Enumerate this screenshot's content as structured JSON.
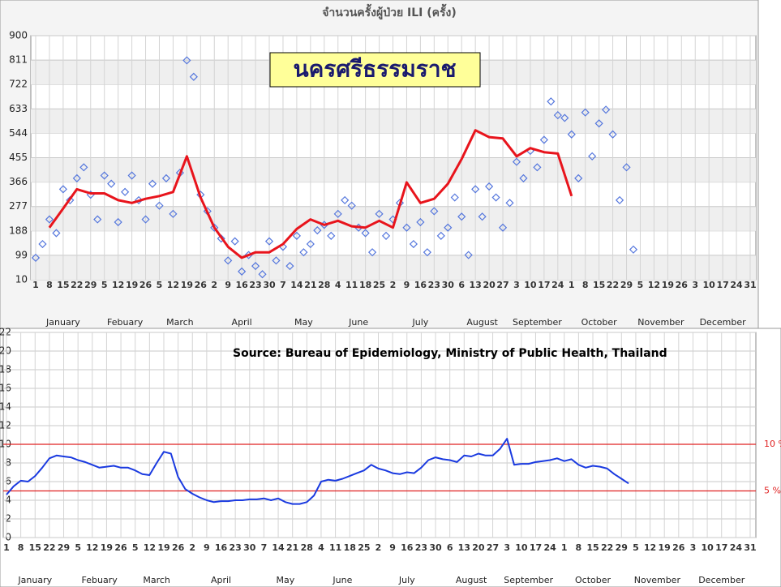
{
  "chart_data": [
    {
      "type": "line",
      "title": "จำนวนครั้งผู้ป่วย ILI (ครั้ง)",
      "annotation": "นครศรีธรรมราช",
      "months": [
        {
          "name": "January",
          "days": [
            1,
            8,
            15,
            22,
            29
          ]
        },
        {
          "name": "Febuary",
          "days": [
            5,
            12,
            19,
            26
          ]
        },
        {
          "name": "March",
          "days": [
            5,
            12,
            19,
            26
          ]
        },
        {
          "name": "April",
          "days": [
            2,
            9,
            16,
            23,
            30
          ]
        },
        {
          "name": "May",
          "days": [
            7,
            14,
            21,
            28
          ]
        },
        {
          "name": "June",
          "days": [
            4,
            11,
            18,
            25
          ]
        },
        {
          "name": "July",
          "days": [
            2,
            9,
            16,
            23,
            30
          ]
        },
        {
          "name": "August",
          "days": [
            6,
            13,
            20,
            27
          ]
        },
        {
          "name": "September",
          "days": [
            3,
            10,
            17,
            24
          ]
        },
        {
          "name": "October",
          "days": [
            1,
            8,
            15,
            22,
            29
          ]
        },
        {
          "name": "November",
          "days": [
            5,
            12,
            19,
            26
          ]
        },
        {
          "name": "December",
          "days": [
            3,
            10,
            17,
            24,
            31
          ]
        }
      ],
      "ylim": [
        10,
        900
      ],
      "yticks": [
        10,
        99,
        188,
        277,
        366,
        455,
        544,
        633,
        722,
        811,
        900
      ],
      "grid": true,
      "series": [
        {
          "type": "scatter",
          "color": "#5577dd",
          "values": [
            90,
            140,
            230,
            180,
            340,
            300,
            380,
            420,
            320,
            230,
            390,
            360,
            220,
            330,
            390,
            300,
            230,
            360,
            280,
            380,
            250,
            400,
            810,
            750,
            320,
            260,
            200,
            160,
            80,
            150,
            40,
            100,
            60,
            30,
            150,
            80,
            130,
            60,
            170,
            110,
            140,
            190,
            210,
            170,
            250,
            300,
            280,
            200,
            180,
            110,
            250,
            170,
            230,
            290,
            200,
            140,
            220,
            110,
            260,
            170,
            200,
            310,
            240,
            100,
            340,
            240,
            350,
            310,
            200,
            290,
            440,
            380,
            480,
            420,
            520,
            660,
            610,
            600,
            540,
            380,
            620,
            460,
            580,
            630,
            540,
            300,
            420,
            120
          ]
        },
        {
          "type": "line",
          "color": "#e8141c",
          "values": [
            null,
            200,
            270,
            340,
            325,
            325,
            300,
            290,
            305,
            315,
            330,
            460,
            310,
            200,
            130,
            90,
            110,
            110,
            140,
            195,
            230,
            210,
            225,
            205,
            200,
            225,
            200,
            365,
            290,
            305,
            360,
            450,
            555,
            530,
            525,
            460,
            490,
            475,
            470,
            315,
            null,
            null,
            null,
            null,
            null,
            null,
            null,
            null,
            null,
            null,
            null,
            null,
            null
          ]
        }
      ]
    },
    {
      "type": "line",
      "source": "Source: Bureau of Epidemiology, Ministry of Public Health, Thailand",
      "months": [
        {
          "name": "January",
          "days": [
            1,
            8,
            15,
            22,
            29
          ]
        },
        {
          "name": "Febuary",
          "days": [
            5,
            12,
            19,
            26
          ]
        },
        {
          "name": "March",
          "days": [
            5,
            12,
            19,
            26
          ]
        },
        {
          "name": "April",
          "days": [
            2,
            9,
            16,
            23,
            30
          ]
        },
        {
          "name": "May",
          "days": [
            7,
            14,
            21,
            28
          ]
        },
        {
          "name": "June",
          "days": [
            4,
            11,
            18,
            25
          ]
        },
        {
          "name": "July",
          "days": [
            2,
            9,
            16,
            23,
            30
          ]
        },
        {
          "name": "August",
          "days": [
            6,
            13,
            20,
            27
          ]
        },
        {
          "name": "September",
          "days": [
            3,
            10,
            17,
            24
          ]
        },
        {
          "name": "October",
          "days": [
            1,
            8,
            15,
            22,
            29
          ]
        },
        {
          "name": "November",
          "days": [
            5,
            12,
            19,
            26
          ]
        },
        {
          "name": "December",
          "days": [
            3,
            10,
            17,
            24,
            31
          ]
        }
      ],
      "ylim": [
        0,
        22
      ],
      "yticks": [
        0,
        2,
        4,
        6,
        8,
        10,
        12,
        14,
        16,
        18,
        20,
        22
      ],
      "grid": true,
      "thresholds": [
        {
          "value": 10,
          "label": "10 %"
        },
        {
          "value": 5,
          "label": "5 %"
        }
      ],
      "series": [
        {
          "type": "line",
          "color": "#1a3ae0",
          "values": [
            4.6,
            5.5,
            6.1,
            6.0,
            6.6,
            7.5,
            8.5,
            8.8,
            8.7,
            8.6,
            8.3,
            8.1,
            7.8,
            7.5,
            7.6,
            7.7,
            7.5,
            7.5,
            7.2,
            6.8,
            6.7,
            8.0,
            9.2,
            9.0,
            6.5,
            5.2,
            4.7,
            4.3,
            4.0,
            3.8,
            3.9,
            3.9,
            4.0,
            4.0,
            4.1,
            4.1,
            4.2,
            4.0,
            4.2,
            3.8,
            3.6,
            3.6,
            3.8,
            4.5,
            6.0,
            6.2,
            6.1,
            6.3,
            6.6,
            6.9,
            7.2,
            7.8,
            7.4,
            7.2,
            6.9,
            6.8,
            7.0,
            6.9,
            7.5,
            8.3,
            8.6,
            8.4,
            8.3,
            8.1,
            8.8,
            8.7,
            9.0,
            8.8,
            8.8,
            9.5,
            10.6,
            7.8,
            7.9,
            7.9,
            8.1,
            8.2,
            8.3,
            8.5,
            8.2,
            8.4,
            7.8,
            7.5,
            7.7,
            7.6,
            7.4,
            6.8,
            6.3,
            5.8
          ]
        }
      ]
    }
  ]
}
